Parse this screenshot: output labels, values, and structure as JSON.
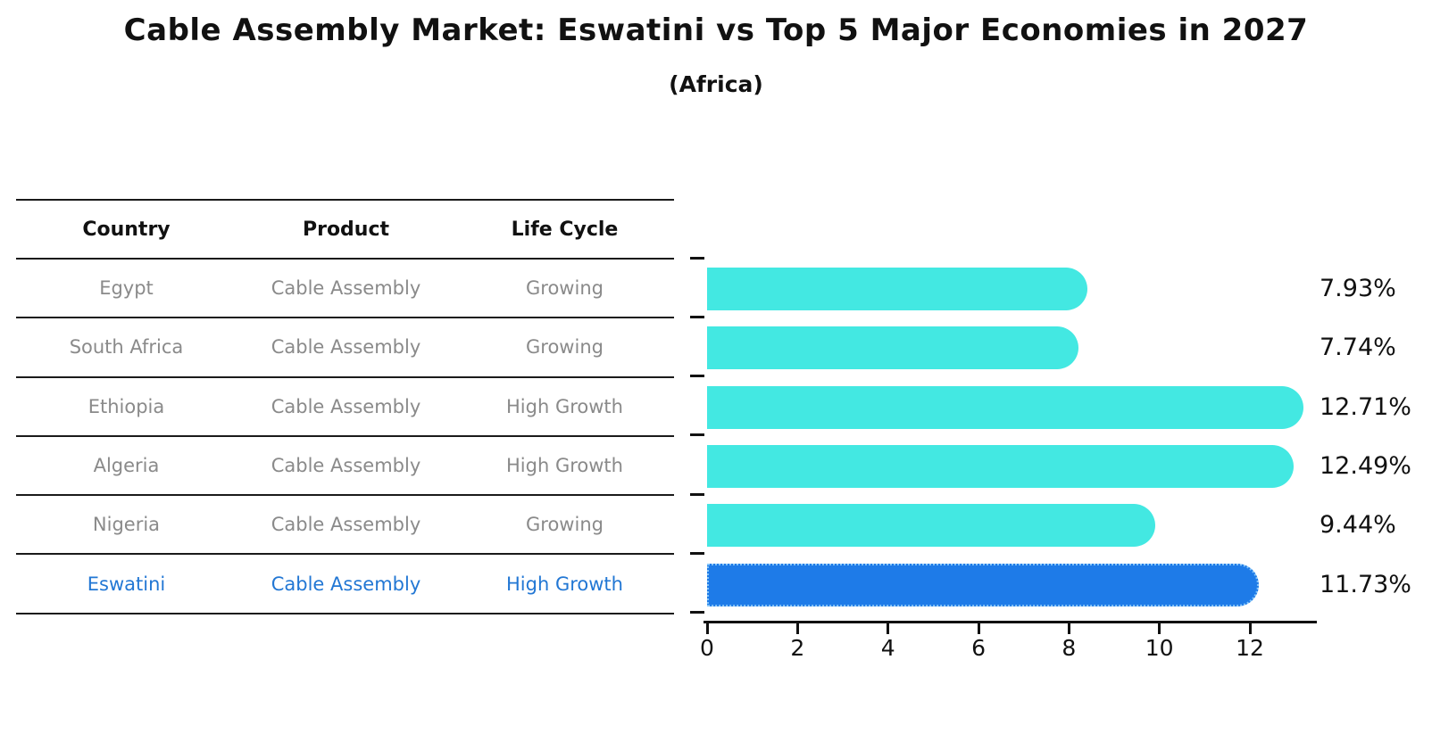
{
  "title": "Cable Assembly Market: Eswatini vs Top 5 Major Economies in 2027",
  "subtitle": "(Africa)",
  "table": {
    "headers": [
      "Country",
      "Product",
      "Life Cycle"
    ],
    "rows": [
      {
        "country": "Egypt",
        "product": "Cable Assembly",
        "life_cycle": "Growing",
        "highlight": false
      },
      {
        "country": "South Africa",
        "product": "Cable Assembly",
        "life_cycle": "Growing",
        "highlight": false
      },
      {
        "country": "Ethiopia",
        "product": "Cable Assembly",
        "life_cycle": "High Growth",
        "highlight": false
      },
      {
        "country": "Algeria",
        "product": "Cable Assembly",
        "life_cycle": "High Growth",
        "highlight": false
      },
      {
        "country": "Nigeria",
        "product": "Cable Assembly",
        "life_cycle": "Growing",
        "highlight": false
      },
      {
        "country": "Eswatini",
        "product": "Cable Assembly",
        "life_cycle": "High Growth",
        "highlight": true
      }
    ]
  },
  "chart_data": {
    "type": "bar",
    "orientation": "horizontal",
    "title": "Cable Assembly Market: Eswatini vs Top 5 Major Economies in 2027",
    "subtitle": "(Africa)",
    "categories": [
      "Egypt",
      "South Africa",
      "Ethiopia",
      "Algeria",
      "Nigeria",
      "Eswatini"
    ],
    "values": [
      7.93,
      7.74,
      12.71,
      12.49,
      9.44,
      11.73
    ],
    "value_labels": [
      "7.93%",
      "7.74%",
      "12.71%",
      "12.49%",
      "9.44%",
      "11.73%"
    ],
    "highlight_index": 5,
    "xlabel": "",
    "ylabel": "",
    "xlim": [
      0,
      13.4
    ],
    "xticks": [
      0,
      2,
      4,
      6,
      8,
      10,
      12
    ],
    "grid": false,
    "legend": null,
    "bar_color": "#43E8E2",
    "highlight_bar_color": "#1E7BE8",
    "highlight_border_color": "#84C4F8"
  },
  "colors": {
    "bar": "#43E8E2",
    "highlight_bar": "#1E7BE8",
    "highlight_border": "#84C4F8",
    "table_text": "#8A8A8A",
    "highlight_text": "#2277D4",
    "axis": "#111111"
  }
}
